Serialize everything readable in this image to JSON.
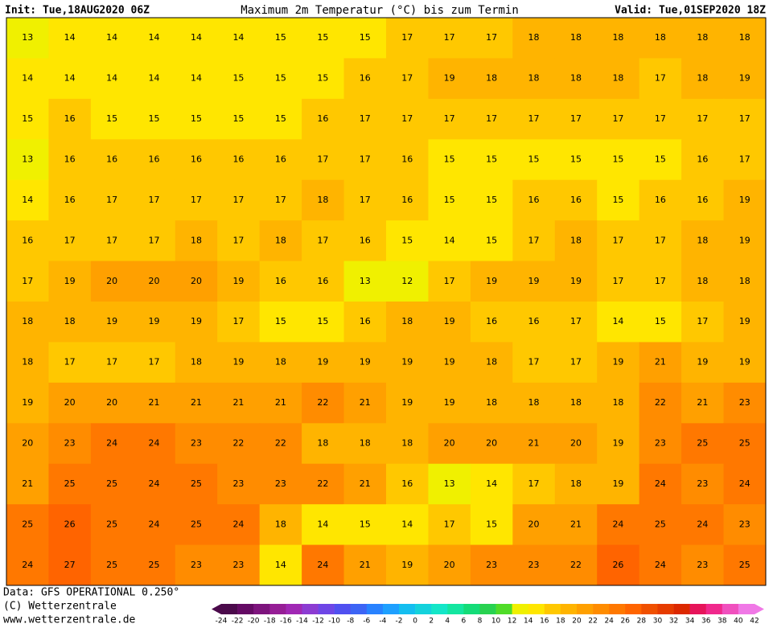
{
  "header": {
    "init": "Init: Tue,18AUG2020 06Z",
    "title": "Maximum 2m Temperatur (°C) bis zum Termin",
    "valid": "Valid: Tue,01SEP2020 18Z"
  },
  "map": {
    "rows": [
      [
        13,
        14,
        14,
        14,
        14,
        14,
        15,
        15,
        15,
        17,
        17,
        17,
        18,
        18,
        18,
        18,
        18,
        18
      ],
      [
        14,
        14,
        14,
        14,
        14,
        15,
        15,
        15,
        16,
        17,
        19,
        18,
        18,
        18,
        18,
        17,
        18,
        19
      ],
      [
        15,
        16,
        15,
        15,
        15,
        15,
        15,
        16,
        17,
        17,
        17,
        17,
        17,
        17,
        17,
        17,
        17,
        17
      ],
      [
        13,
        16,
        16,
        16,
        16,
        16,
        16,
        17,
        17,
        16,
        15,
        15,
        15,
        15,
        15,
        15,
        16,
        17
      ],
      [
        14,
        16,
        17,
        17,
        17,
        17,
        17,
        18,
        17,
        16,
        15,
        15,
        16,
        16,
        15,
        16,
        16,
        19
      ],
      [
        16,
        17,
        17,
        17,
        18,
        17,
        18,
        17,
        16,
        15,
        14,
        15,
        17,
        18,
        17,
        17,
        18,
        19
      ],
      [
        17,
        19,
        20,
        20,
        20,
        19,
        16,
        16,
        13,
        12,
        17,
        19,
        19,
        19,
        17,
        17,
        18,
        18
      ],
      [
        18,
        18,
        19,
        19,
        19,
        17,
        15,
        15,
        16,
        18,
        19,
        16,
        16,
        17,
        14,
        15,
        17,
        19
      ],
      [
        18,
        17,
        17,
        17,
        18,
        19,
        18,
        19,
        19,
        19,
        19,
        18,
        17,
        17,
        19,
        21,
        19,
        19
      ],
      [
        19,
        20,
        20,
        21,
        21,
        21,
        21,
        22,
        21,
        19,
        19,
        18,
        18,
        18,
        18,
        22,
        21,
        23
      ],
      [
        20,
        23,
        24,
        24,
        23,
        22,
        22,
        18,
        18,
        18,
        20,
        20,
        21,
        20,
        19,
        23,
        25,
        25
      ],
      [
        21,
        25,
        25,
        24,
        25,
        23,
        23,
        22,
        21,
        16,
        13,
        14,
        17,
        18,
        19,
        24,
        23,
        24
      ],
      [
        25,
        26,
        25,
        24,
        25,
        24,
        18,
        14,
        15,
        14,
        17,
        15,
        20,
        21,
        24,
        25,
        24,
        23
      ],
      [
        24,
        27,
        25,
        25,
        23,
        23,
        14,
        24,
        21,
        19,
        20,
        23,
        23,
        22,
        26,
        24,
        23,
        25
      ]
    ]
  },
  "colorbar": {
    "labels": [
      -24,
      -22,
      -20,
      -18,
      -16,
      -14,
      -12,
      -10,
      -8,
      -6,
      -4,
      -2,
      0,
      2,
      4,
      6,
      8,
      10,
      12,
      14,
      16,
      18,
      20,
      22,
      24,
      26,
      28,
      30,
      32,
      34,
      36,
      38,
      40,
      42
    ],
    "colors": [
      "#4b0a4b",
      "#640a64",
      "#7d147d",
      "#961e96",
      "#a028b4",
      "#8c3cd2",
      "#6e46e6",
      "#5050f0",
      "#3c64f5",
      "#2882ff",
      "#1ea0ff",
      "#14bef0",
      "#14d2dc",
      "#14e6c8",
      "#14e6a0",
      "#14dc78",
      "#28d250",
      "#50dc28",
      "#f0f000",
      "#ffe600",
      "#ffc800",
      "#ffb400",
      "#ffa000",
      "#ff8c00",
      "#ff7800",
      "#ff6400",
      "#f05000",
      "#e63c00",
      "#dc2800",
      "#e6145a",
      "#f0288c",
      "#f050be",
      "#f078e6"
    ]
  },
  "footer": {
    "data": "Data: GFS OPERATIONAL 0.250°",
    "copyright": "(C) Wetterzentrale",
    "url": "www.wetterzentrale.de"
  }
}
